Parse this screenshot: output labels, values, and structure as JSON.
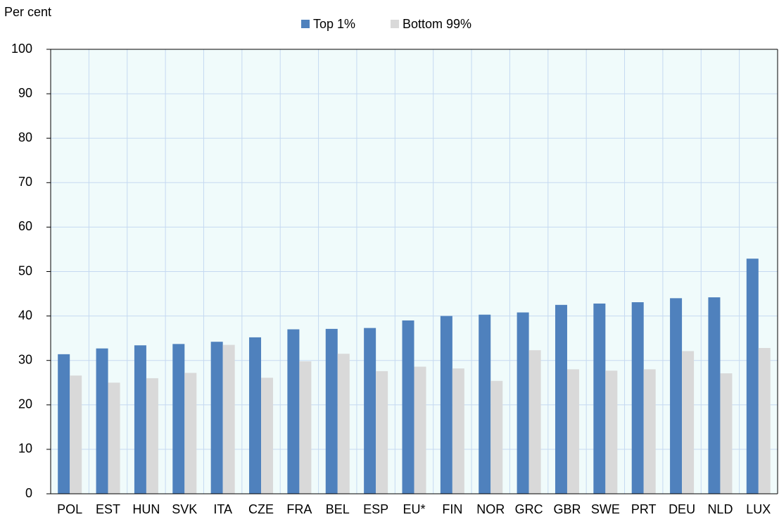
{
  "chart_data": {
    "type": "bar",
    "y_label": "Per cent",
    "categories": [
      "POL",
      "EST",
      "HUN",
      "SVK",
      "ITA",
      "CZE",
      "FRA",
      "BEL",
      "ESP",
      "EU*",
      "FIN",
      "NOR",
      "GRC",
      "GBR",
      "SWE",
      "PRT",
      "DEU",
      "NLD",
      "LUX"
    ],
    "series": [
      {
        "name": "Top 1%",
        "color": "#4f81bd",
        "values": [
          31.4,
          32.7,
          33.4,
          33.7,
          34.2,
          35.2,
          37.0,
          37.1,
          37.3,
          39.0,
          40.0,
          40.3,
          40.8,
          42.5,
          42.8,
          43.1,
          44.0,
          44.2,
          52.9
        ]
      },
      {
        "name": "Bottom 99%",
        "color": "#d9d9d9",
        "values": [
          26.6,
          25.0,
          26.0,
          27.2,
          33.5,
          26.1,
          29.8,
          31.5,
          27.6,
          28.6,
          28.2,
          25.4,
          32.3,
          28.0,
          27.7,
          28.0,
          32.1,
          27.1,
          32.8
        ]
      }
    ],
    "ylim": [
      0,
      100
    ],
    "yticks": [
      0,
      10,
      20,
      30,
      40,
      50,
      60,
      70,
      80,
      90,
      100
    ],
    "grid": true,
    "legend": "top"
  }
}
